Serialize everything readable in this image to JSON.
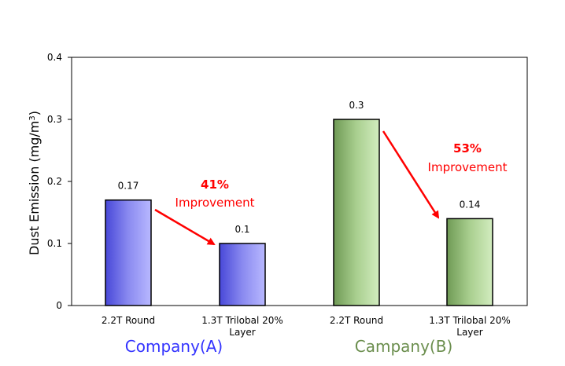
{
  "chart_data": {
    "type": "bar",
    "ylabel": "Dust Emission (mg/m",
    "ylabel_sup": "3",
    "ylabel_close": ")",
    "ylim": [
      0,
      0.4
    ],
    "yticks": [
      "0",
      "0.1",
      "0.2",
      "0.3",
      "0.4"
    ],
    "yticks_values": [
      0,
      0.1,
      0.2,
      0.3,
      0.4
    ],
    "grid": false,
    "categories": [
      {
        "line1": "2.2T Round",
        "line2": ""
      },
      {
        "line1": "1.3T Trilobal 20%",
        "line2": "Layer"
      },
      {
        "line1": "2.2T Round",
        "line2": ""
      },
      {
        "line1": "1.3T Trilobal 20%",
        "line2": "Layer"
      }
    ],
    "values": [
      0.17,
      0.1,
      0.3,
      0.14
    ],
    "value_labels": [
      "0.17",
      "0.1",
      "0.3",
      "0.14"
    ],
    "groups": [
      {
        "name": "Company(A)",
        "color": "#3333ff",
        "bar_color": "#7b7bea",
        "bar_edge": "#3a3ab8"
      },
      {
        "name": "Campany(B)",
        "color": "#6b8e4e",
        "bar_color": "#a9c98f",
        "bar_edge": "#5f8a44"
      }
    ],
    "annotations": [
      {
        "pct": "41%",
        "text": "Improvement",
        "color": "#ff0000"
      },
      {
        "pct": "53%",
        "text": "Improvement",
        "color": "#ff0000"
      }
    ]
  }
}
